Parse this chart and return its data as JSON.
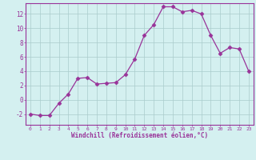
{
  "x": [
    0,
    1,
    2,
    3,
    4,
    5,
    6,
    7,
    8,
    9,
    10,
    11,
    12,
    13,
    14,
    15,
    16,
    17,
    18,
    19,
    20,
    21,
    22,
    23
  ],
  "y": [
    -2.0,
    -2.2,
    -2.2,
    -0.5,
    0.8,
    3.0,
    3.1,
    2.2,
    2.3,
    2.4,
    3.5,
    5.7,
    9.0,
    10.5,
    13.0,
    13.0,
    12.3,
    12.5,
    12.0,
    9.0,
    6.5,
    7.3,
    7.1,
    4.0
  ],
  "xlabel": "Windchill (Refroidissement éolien,°C)",
  "line_color": "#993399",
  "marker": "D",
  "marker_size": 2.5,
  "bg_color": "#d4f0f0",
  "grid_color": "#aacccc",
  "tick_label_color": "#993399",
  "xlabel_color": "#993399",
  "ylim": [
    -3.5,
    13.5
  ],
  "yticks": [
    -2,
    0,
    2,
    4,
    6,
    8,
    10,
    12
  ],
  "xticks": [
    0,
    1,
    2,
    3,
    4,
    5,
    6,
    7,
    8,
    9,
    10,
    11,
    12,
    13,
    14,
    15,
    16,
    17,
    18,
    19,
    20,
    21,
    22,
    23
  ],
  "figsize": [
    3.2,
    2.0
  ],
  "dpi": 100
}
